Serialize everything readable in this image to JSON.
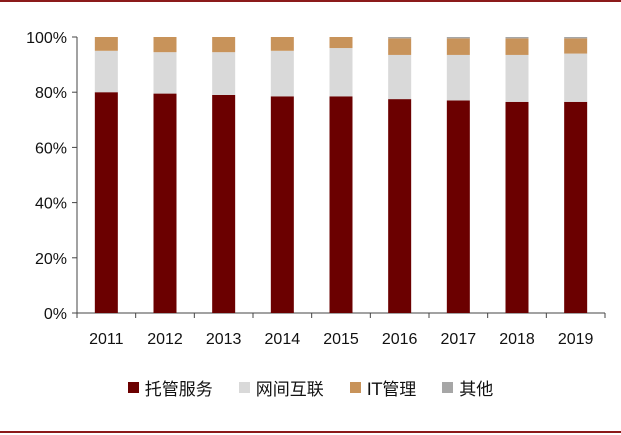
{
  "chart_data": {
    "type": "bar",
    "stacked": true,
    "categories": [
      "2011",
      "2012",
      "2013",
      "2014",
      "2015",
      "2016",
      "2017",
      "2018",
      "2019"
    ],
    "series": [
      {
        "name": "托管服务",
        "color": "#6b0000",
        "values": [
          80,
          79.5,
          79,
          78.5,
          78.5,
          77.5,
          77,
          76.5,
          76.5
        ]
      },
      {
        "name": "网间互联",
        "color": "#d9d9d9",
        "values": [
          15,
          15,
          15.5,
          16.5,
          17.5,
          16,
          16.5,
          17,
          17.5
        ]
      },
      {
        "name": "IT管理",
        "color": "#c8935a",
        "values": [
          5,
          5.5,
          5.5,
          5,
          4,
          6,
          6,
          6,
          5.5
        ]
      },
      {
        "name": "其他",
        "color": "#a6a6a6",
        "values": [
          0,
          0,
          0,
          0,
          0,
          0.5,
          0.5,
          0.5,
          0.5
        ]
      }
    ],
    "yticks": [
      "0%",
      "20%",
      "40%",
      "60%",
      "80%",
      "100%"
    ],
    "ylim": [
      0,
      100
    ],
    "legend_position": "bottom",
    "grid": false
  }
}
